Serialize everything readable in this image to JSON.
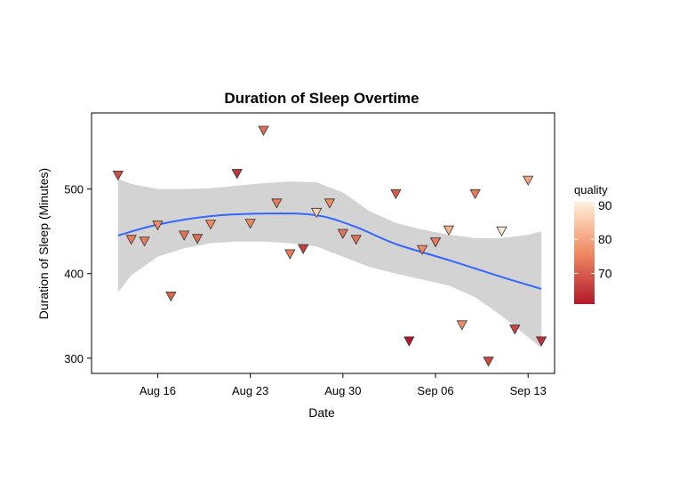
{
  "chart_data": {
    "type": "scatter",
    "title": "Duration of Sleep Overtime",
    "xlabel": "Date",
    "ylabel": "Duration of Sleep (Minutes)",
    "x_type": "date",
    "xlim": [
      "2021-08-11",
      "2021-09-15"
    ],
    "ylim": [
      282,
      590
    ],
    "x_ticks": [
      {
        "date": "2021-08-16",
        "label": "Aug 16"
      },
      {
        "date": "2021-08-23",
        "label": "Aug 23"
      },
      {
        "date": "2021-08-30",
        "label": "Aug 30"
      },
      {
        "date": "2021-09-06",
        "label": "Sep 06"
      },
      {
        "date": "2021-09-13",
        "label": "Sep 13"
      }
    ],
    "y_ticks": [
      300,
      400,
      500
    ],
    "grid": false,
    "marker": "down-triangle",
    "color_variable": "quality",
    "color_scale": {
      "title": "quality",
      "min": 61,
      "max": 91,
      "low_color": "#b2182b",
      "mid_color": "#ef8a62",
      "high_color": "#fef0d9",
      "ticks": [
        70,
        80,
        90
      ]
    },
    "points": [
      {
        "date": "2021-08-13",
        "sleep_minutes": 516,
        "quality": 68
      },
      {
        "date": "2021-08-14",
        "sleep_minutes": 440,
        "quality": 74
      },
      {
        "date": "2021-08-15",
        "sleep_minutes": 438,
        "quality": 74
      },
      {
        "date": "2021-08-16",
        "sleep_minutes": 457,
        "quality": 76
      },
      {
        "date": "2021-08-17",
        "sleep_minutes": 373,
        "quality": 71
      },
      {
        "date": "2021-08-18",
        "sleep_minutes": 445,
        "quality": 73
      },
      {
        "date": "2021-08-19",
        "sleep_minutes": 441,
        "quality": 72
      },
      {
        "date": "2021-08-20",
        "sleep_minutes": 458,
        "quality": 76
      },
      {
        "date": "2021-08-22",
        "sleep_minutes": 518,
        "quality": 65
      },
      {
        "date": "2021-08-23",
        "sleep_minutes": 459,
        "quality": 76
      },
      {
        "date": "2021-08-24",
        "sleep_minutes": 569,
        "quality": 72
      },
      {
        "date": "2021-08-25",
        "sleep_minutes": 483,
        "quality": 74
      },
      {
        "date": "2021-08-26",
        "sleep_minutes": 423,
        "quality": 74
      },
      {
        "date": "2021-08-27",
        "sleep_minutes": 429,
        "quality": 66
      },
      {
        "date": "2021-08-28",
        "sleep_minutes": 472,
        "quality": 86
      },
      {
        "date": "2021-08-29",
        "sleep_minutes": 483,
        "quality": 76
      },
      {
        "date": "2021-08-30",
        "sleep_minutes": 447,
        "quality": 73
      },
      {
        "date": "2021-08-31",
        "sleep_minutes": 440,
        "quality": 73
      },
      {
        "date": "2021-09-03",
        "sleep_minutes": 494,
        "quality": 70
      },
      {
        "date": "2021-09-04",
        "sleep_minutes": 320,
        "quality": 61
      },
      {
        "date": "2021-09-05",
        "sleep_minutes": 428,
        "quality": 76
      },
      {
        "date": "2021-09-06",
        "sleep_minutes": 437,
        "quality": 74
      },
      {
        "date": "2021-09-07",
        "sleep_minutes": 451,
        "quality": 82
      },
      {
        "date": "2021-09-08",
        "sleep_minutes": 339,
        "quality": 77
      },
      {
        "date": "2021-09-09",
        "sleep_minutes": 494,
        "quality": 74
      },
      {
        "date": "2021-09-10",
        "sleep_minutes": 296,
        "quality": 67
      },
      {
        "date": "2021-09-11",
        "sleep_minutes": 450,
        "quality": 90
      },
      {
        "date": "2021-09-12",
        "sleep_minutes": 334,
        "quality": 67
      },
      {
        "date": "2021-09-13",
        "sleep_minutes": 510,
        "quality": 80
      },
      {
        "date": "2021-09-14",
        "sleep_minutes": 320,
        "quality": 64
      }
    ],
    "smooth_line": {
      "color": "#3366ff",
      "points": [
        {
          "date": "2021-08-13",
          "y": 445
        },
        {
          "date": "2021-08-16",
          "y": 458
        },
        {
          "date": "2021-08-20",
          "y": 468
        },
        {
          "date": "2021-08-24",
          "y": 471
        },
        {
          "date": "2021-08-28",
          "y": 469
        },
        {
          "date": "2021-08-31",
          "y": 455
        },
        {
          "date": "2021-09-03",
          "y": 435
        },
        {
          "date": "2021-09-07",
          "y": 416
        },
        {
          "date": "2021-09-11",
          "y": 396
        },
        {
          "date": "2021-09-14",
          "y": 382
        }
      ]
    },
    "confidence_band": {
      "color": "#d3d3d3",
      "points": [
        {
          "date": "2021-08-13",
          "low": 378,
          "high": 512
        },
        {
          "date": "2021-08-14",
          "low": 398,
          "high": 506
        },
        {
          "date": "2021-08-16",
          "low": 420,
          "high": 500
        },
        {
          "date": "2021-08-18",
          "low": 430,
          "high": 500
        },
        {
          "date": "2021-08-20",
          "low": 436,
          "high": 501
        },
        {
          "date": "2021-08-22",
          "low": 438,
          "high": 504
        },
        {
          "date": "2021-08-24",
          "low": 438,
          "high": 507
        },
        {
          "date": "2021-08-26",
          "low": 436,
          "high": 509
        },
        {
          "date": "2021-08-28",
          "low": 432,
          "high": 508
        },
        {
          "date": "2021-08-30",
          "low": 420,
          "high": 496
        },
        {
          "date": "2021-09-01",
          "low": 408,
          "high": 474
        },
        {
          "date": "2021-09-03",
          "low": 400,
          "high": 460
        },
        {
          "date": "2021-09-05",
          "low": 393,
          "high": 452
        },
        {
          "date": "2021-09-07",
          "low": 386,
          "high": 446
        },
        {
          "date": "2021-09-09",
          "low": 372,
          "high": 442
        },
        {
          "date": "2021-09-11",
          "low": 350,
          "high": 442
        },
        {
          "date": "2021-09-13",
          "low": 325,
          "high": 446
        },
        {
          "date": "2021-09-14",
          "low": 312,
          "high": 450
        }
      ]
    }
  }
}
